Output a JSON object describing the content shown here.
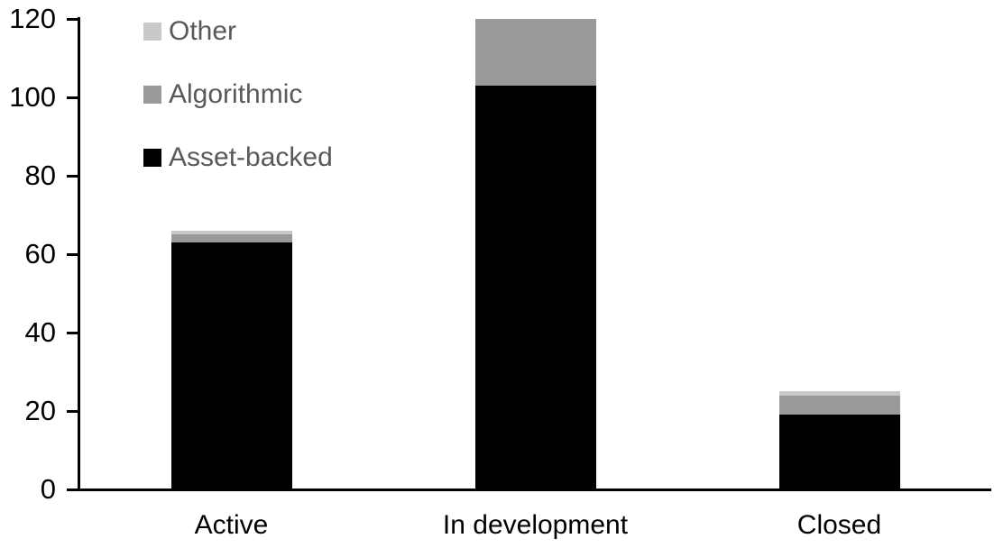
{
  "chart_data": {
    "type": "bar",
    "stacked": true,
    "title": "",
    "xlabel": "",
    "ylabel": "",
    "categories": [
      "Active",
      "In development",
      "Closed"
    ],
    "series": [
      {
        "name": "Asset-backed",
        "color": "#000000",
        "values": [
          63,
          103,
          19
        ]
      },
      {
        "name": "Algorithmic",
        "color": "#999999",
        "values": [
          2,
          17,
          5
        ]
      },
      {
        "name": "Other",
        "color": "#c9c9c9",
        "values": [
          1,
          0,
          1
        ]
      }
    ],
    "totals": [
      66,
      120,
      25
    ],
    "ylim": [
      0,
      120
    ],
    "yticks": [
      0,
      20,
      40,
      60,
      80,
      100,
      120
    ],
    "grid": false,
    "legend": {
      "position": "top-left",
      "entries": [
        {
          "label": "Other",
          "color": "#c9c9c9"
        },
        {
          "label": "Algorithmic",
          "color": "#999999"
        },
        {
          "label": "Asset-backed",
          "color": "#000000"
        }
      ]
    }
  },
  "colors": {
    "axis": "#000000",
    "tick_label_text": "#000000",
    "category_label_text": "#000000",
    "legend_text": "#595959",
    "background": "#ffffff"
  }
}
